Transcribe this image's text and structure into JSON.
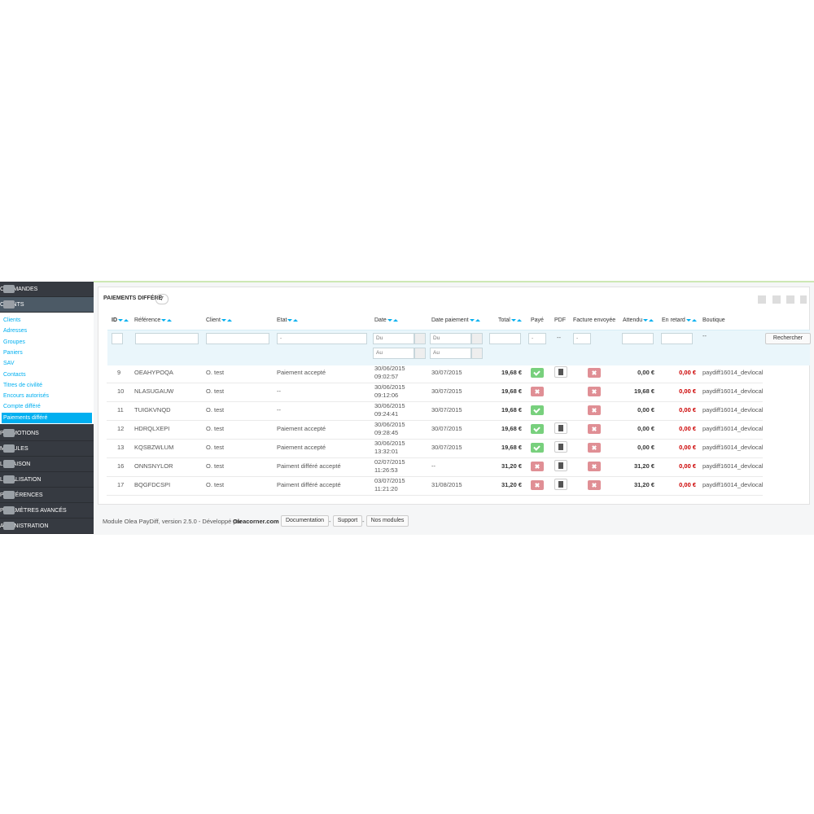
{
  "sidebar": {
    "top": [
      "COMMANDES",
      "CLIENTS"
    ],
    "submenu": [
      "Clients",
      "Adresses",
      "Groupes",
      "Paniers",
      "SAV",
      "Contacts",
      "Titres de civilité",
      "Encours autorisés",
      "Compte différé",
      "Paiements différé"
    ],
    "bottom": [
      "PROMOTIONS",
      "MODULES",
      "LIVRAISON",
      "LOCALISATION",
      "PRÉFÉRENCES",
      "PARAMÈTRES AVANCÉS",
      "ADMINISTRATION"
    ]
  },
  "panel": {
    "title": "PAIEMENTS DIFFÉRÉ",
    "count": 7,
    "columns": [
      "ID",
      "Référence",
      "Client",
      "Etat",
      "Date",
      "Date paiement",
      "Total",
      "Payé",
      "PDF",
      "Facture envoyée",
      "Attendu",
      "En retard",
      "Boutique"
    ],
    "filters": {
      "date_from": "Du",
      "date_to": "Au",
      "select_default": "-",
      "empty": "--"
    },
    "search_button": "Rechercher",
    "rows": [
      {
        "id": 9,
        "reference": "OEAHYPOQA",
        "client": "O. test",
        "etat": "Paiement accepté",
        "date": "30/06/2015",
        "time": "09:02:57",
        "date_paiement": "30/07/2015",
        "total": "19,68 €",
        "paid": true,
        "pdf": true,
        "facture": false,
        "attendu": "0,00 €",
        "retard": "0,00 €",
        "boutique": "paydiff16014_devlocal"
      },
      {
        "id": 10,
        "reference": "NLASUGAUW",
        "client": "O. test",
        "etat": "--",
        "date": "30/06/2015",
        "time": "09:12:06",
        "date_paiement": "30/07/2015",
        "total": "19,68 €",
        "paid": false,
        "pdf": false,
        "facture": false,
        "attendu": "19,68 €",
        "retard": "0,00 €",
        "boutique": "paydiff16014_devlocal"
      },
      {
        "id": 11,
        "reference": "TUIGKVNQD",
        "client": "O. test",
        "etat": "--",
        "date": "30/06/2015",
        "time": "09:24:41",
        "date_paiement": "30/07/2015",
        "total": "19,68 €",
        "paid": true,
        "pdf": false,
        "facture": false,
        "attendu": "0,00 €",
        "retard": "0,00 €",
        "boutique": "paydiff16014_devlocal"
      },
      {
        "id": 12,
        "reference": "HDRQLXEPI",
        "client": "O. test",
        "etat": "Paiement accepté",
        "date": "30/06/2015",
        "time": "09:28:45",
        "date_paiement": "30/07/2015",
        "total": "19,68 €",
        "paid": true,
        "pdf": true,
        "facture": false,
        "attendu": "0,00 €",
        "retard": "0,00 €",
        "boutique": "paydiff16014_devlocal"
      },
      {
        "id": 13,
        "reference": "KQSBZWLUM",
        "client": "O. test",
        "etat": "Paiement accepté",
        "date": "30/06/2015",
        "time": "13:32:01",
        "date_paiement": "30/07/2015",
        "total": "19,68 €",
        "paid": true,
        "pdf": true,
        "facture": false,
        "attendu": "0,00 €",
        "retard": "0,00 €",
        "boutique": "paydiff16014_devlocal"
      },
      {
        "id": 16,
        "reference": "ONNSNYLOR",
        "client": "O. test",
        "etat": "Paiment différé accepté",
        "date": "02/07/2015",
        "time": "11:26:53",
        "date_paiement": "--",
        "total": "31,20 €",
        "paid": false,
        "pdf": true,
        "facture": false,
        "attendu": "31,20 €",
        "retard": "0,00 €",
        "boutique": "paydiff16014_devlocal"
      },
      {
        "id": 17,
        "reference": "BQGFDCSPI",
        "client": "O. test",
        "etat": "Paiment différé accepté",
        "date": "03/07/2015",
        "time": "11:21:20",
        "date_paiement": "31/08/2015",
        "total": "31,20 €",
        "paid": false,
        "pdf": true,
        "facture": false,
        "attendu": "31,20 €",
        "retard": "0,00 €",
        "boutique": "paydiff16014_devlocal"
      }
    ]
  },
  "footer": {
    "text": "Module Olea PayDiff, version 2.5.0 - Développé par",
    "link": "Oleacorner.com",
    "separator": "-",
    "buttons": [
      "Documentation",
      "Support",
      "Nos modules"
    ]
  }
}
